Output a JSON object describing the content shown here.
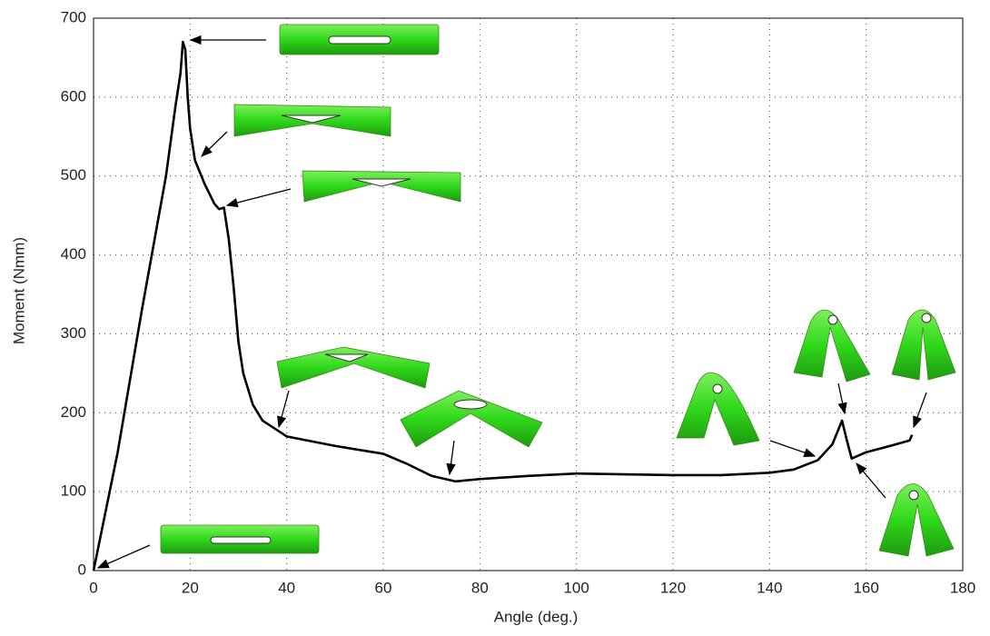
{
  "chart_data": {
    "type": "line",
    "xlabel": "Angle (deg.)",
    "ylabel": "Moment (Nmm)",
    "x": [
      0,
      5,
      10,
      15,
      17,
      18,
      18.5,
      19,
      19.5,
      20,
      21,
      23,
      25,
      26,
      27,
      28,
      29,
      30,
      31,
      33,
      35,
      40,
      50,
      60,
      65,
      70,
      75,
      80,
      90,
      100,
      120,
      130,
      140,
      145,
      150,
      153,
      155,
      156,
      157,
      160,
      165,
      169,
      169.5
    ],
    "values": [
      0,
      150,
      330,
      500,
      590,
      630,
      670,
      660,
      600,
      560,
      520,
      490,
      465,
      458,
      460,
      420,
      360,
      290,
      250,
      210,
      190,
      170,
      158,
      148,
      135,
      120,
      113,
      116,
      120,
      123,
      121,
      121,
      124,
      128,
      140,
      160,
      190,
      165,
      142,
      150,
      158,
      165,
      172
    ],
    "color": "#000000",
    "xlim": [
      0,
      180
    ],
    "xticks": [
      0,
      20,
      40,
      60,
      80,
      100,
      120,
      140,
      160,
      180
    ],
    "ylim": [
      0,
      700
    ],
    "yticks": [
      0,
      100,
      200,
      300,
      400,
      500,
      600,
      700
    ],
    "grid": true
  }
}
